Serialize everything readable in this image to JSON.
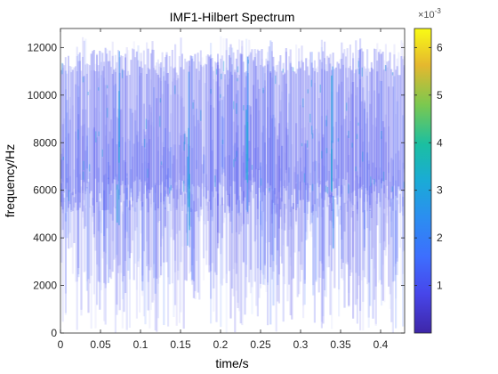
{
  "chart_data": {
    "type": "heatmap",
    "title": "IMF1-Hilbert Spectrum",
    "xlabel": "time/s",
    "ylabel": "frequency/Hz",
    "xlim": [
      0,
      0.43
    ],
    "ylim": [
      0,
      12800
    ],
    "x_ticks": [
      "0",
      "0.05",
      "0.1",
      "0.15",
      "0.2",
      "0.25",
      "0.3",
      "0.35",
      "0.4"
    ],
    "y_ticks": [
      "0",
      "2000",
      "4000",
      "6000",
      "8000",
      "10000",
      "12000"
    ],
    "colorbar": {
      "exponent_label": "×10",
      "exponent": "-3",
      "range": [
        0,
        0.0064
      ],
      "ticks": [
        "1",
        "2",
        "3",
        "4",
        "5",
        "6"
      ],
      "colormap": "parula"
    },
    "band": {
      "dense_frequency_range_hz": [
        5000,
        11500
      ],
      "peak_frequency_hz": 9000,
      "background_value": 0.0008,
      "hot_spots": [
        {
          "time": 0.071,
          "value": 0.0025
        },
        {
          "time": 0.159,
          "value": 0.0022
        },
        {
          "time": 0.232,
          "value": 0.0028
        },
        {
          "time": 0.339,
          "value": 0.002
        }
      ]
    }
  }
}
